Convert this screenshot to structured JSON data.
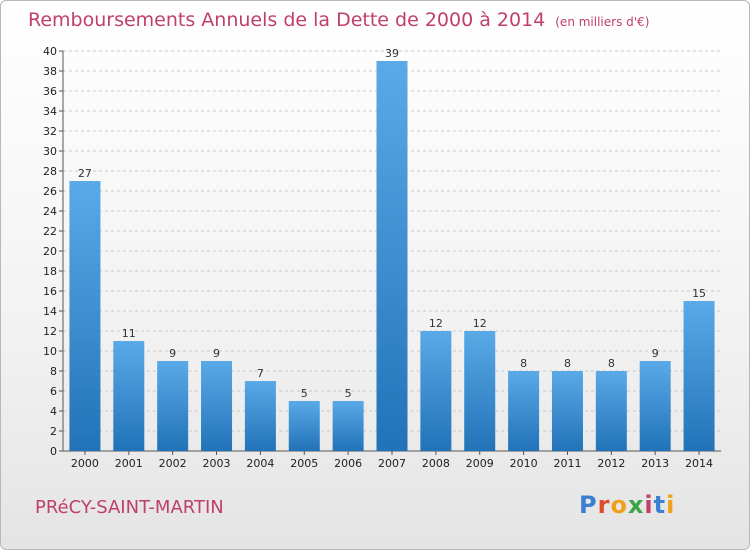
{
  "title": "Remboursements Annuels de la Dette de 2000 à 2014",
  "subtitle": "(en milliers d'€)",
  "commune": "PRéCY-SAINT-MARTIN",
  "logo": {
    "text": "Proxiti",
    "letter_colors": [
      "#3a7fd0",
      "#e04b2a",
      "#f0a11c",
      "#3aa546",
      "#c0406a",
      "#3a7fd0",
      "#f0a11c"
    ]
  },
  "colors": {
    "title": "#c0406a",
    "bar_light": "#5aaae8",
    "bar_dark": "#2272b8",
    "grid": "#c9c9c9"
  },
  "chart_data": {
    "type": "bar",
    "title": "Remboursements Annuels de la Dette de 2000 à 2014",
    "subtitle": "(en milliers d'€)",
    "categories": [
      "2000",
      "2001",
      "2002",
      "2003",
      "2004",
      "2005",
      "2006",
      "2007",
      "2008",
      "2009",
      "2010",
      "2011",
      "2012",
      "2013",
      "2014"
    ],
    "values": [
      27,
      11,
      9,
      9,
      7,
      5,
      5,
      39,
      12,
      12,
      8,
      8,
      8,
      9,
      15
    ],
    "ylim": [
      0,
      40
    ],
    "yticks": [
      0,
      2,
      4,
      6,
      8,
      10,
      12,
      14,
      16,
      18,
      20,
      22,
      24,
      26,
      28,
      30,
      32,
      34,
      36,
      38,
      40
    ],
    "grid": true
  }
}
